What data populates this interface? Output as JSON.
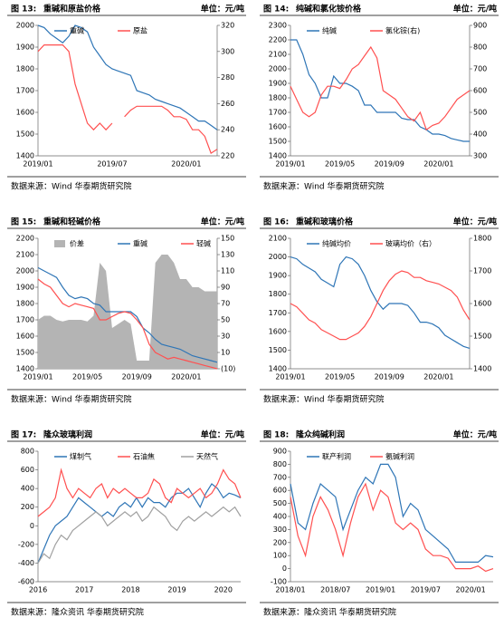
{
  "chart_data": [
    {
      "type": "line",
      "figure": "图 13:",
      "title": "重碱和原盐价格",
      "unit": "单位：元/吨",
      "source": "数据来源：Wind 华泰期货研究院",
      "categories": [
        "2019/01",
        null,
        null,
        null,
        null,
        null,
        null,
        null,
        null,
        null,
        null,
        null,
        "2019/07",
        null,
        null,
        null,
        null,
        null,
        null,
        null,
        null,
        null,
        null,
        null,
        "2020/01",
        null,
        null,
        null,
        null,
        null
      ],
      "ylim": [
        1400,
        2000
      ],
      "yticks": [
        1400,
        1500,
        1600,
        1700,
        1800,
        1900,
        2000
      ],
      "y2lim": [
        220,
        320
      ],
      "y2ticks": [
        220,
        240,
        260,
        280,
        300,
        320
      ],
      "series": [
        {
          "name": "重碱",
          "color": "#2e75b6",
          "values": [
            2000,
            1990,
            1960,
            1940,
            1920,
            1950,
            2000,
            1990,
            1970,
            1900,
            1860,
            1820,
            1800,
            1790,
            1780,
            1770,
            1700,
            1690,
            1680,
            1660,
            1650,
            1640,
            1630,
            1620,
            1600,
            1580,
            1560,
            1560,
            1540,
            1520
          ]
        },
        {
          "name": "原盐",
          "color": "#ff5050",
          "axis": "y2",
          "values": [
            300,
            305,
            305,
            305,
            305,
            300,
            275,
            260,
            245,
            240,
            245,
            240,
            245,
            null,
            250,
            255,
            258,
            258,
            258,
            258,
            258,
            255,
            250,
            250,
            248,
            240,
            240,
            235,
            222,
            225
          ]
        }
      ]
    },
    {
      "type": "line",
      "figure": "图 14:",
      "title": "纯碱和氯化铵价格",
      "unit": "单位：元/吨",
      "source": "数据来源：Wind 华泰期货研究院",
      "categories": [
        "2019/01",
        null,
        null,
        null,
        null,
        null,
        null,
        null,
        "2019/05",
        null,
        null,
        null,
        null,
        null,
        null,
        null,
        "2019/09",
        null,
        null,
        null,
        null,
        null,
        null,
        null,
        "2020/01",
        null,
        null,
        null,
        null,
        null
      ],
      "ylim": [
        1400,
        2300
      ],
      "yticks": [
        1400,
        1500,
        1600,
        1700,
        1800,
        1900,
        2000,
        2100,
        2200,
        2300
      ],
      "y2lim": [
        300,
        900
      ],
      "y2ticks": [
        300,
        400,
        500,
        600,
        700,
        800,
        900
      ],
      "series": [
        {
          "name": "纯碱",
          "color": "#2e75b6",
          "values": [
            2200,
            2200,
            2100,
            1960,
            1900,
            1800,
            1800,
            1950,
            1900,
            1900,
            1880,
            1850,
            1750,
            1750,
            1700,
            1700,
            1700,
            1700,
            1660,
            1650,
            1650,
            1600,
            1580,
            1550,
            1550,
            1540,
            1520,
            1510,
            1500,
            1500
          ]
        },
        {
          "name": "氯化铵(右)",
          "color": "#ff5050",
          "axis": "y2",
          "values": [
            620,
            560,
            500,
            480,
            500,
            580,
            620,
            620,
            610,
            650,
            700,
            720,
            760,
            800,
            750,
            600,
            580,
            560,
            520,
            480,
            460,
            500,
            420,
            440,
            450,
            480,
            520,
            560,
            580,
            600
          ]
        }
      ]
    },
    {
      "type": "line",
      "figure": "图 15:",
      "title": "重碱和轻碱价格",
      "unit": "单位：元/吨",
      "source": "数据来源：Wind 华泰期货研究院",
      "categories": [
        "2019/01",
        null,
        null,
        null,
        null,
        null,
        null,
        null,
        "2019/05",
        null,
        null,
        null,
        null,
        null,
        null,
        null,
        "2019/09",
        null,
        null,
        null,
        null,
        null,
        null,
        null,
        "2020/01",
        null,
        null,
        null,
        null,
        null
      ],
      "ylim": [
        1400,
        2200
      ],
      "yticks": [
        1400,
        1500,
        1600,
        1700,
        1800,
        1900,
        2000,
        2100,
        2200
      ],
      "y2lim": [
        -10,
        150
      ],
      "y2ticks": [
        {
          "value": -10,
          "label": "(10)"
        },
        10,
        30,
        50,
        70,
        90,
        110,
        130,
        150
      ],
      "series": [
        {
          "name": "价差",
          "color": "#b4b4b4",
          "axis": "y2",
          "type": "area",
          "values": [
            50,
            55,
            55,
            50,
            48,
            50,
            50,
            50,
            48,
            55,
            120,
            110,
            40,
            45,
            50,
            45,
            0,
            0,
            0,
            120,
            130,
            130,
            120,
            100,
            100,
            90,
            90,
            85,
            85,
            85
          ]
        },
        {
          "name": "重碱",
          "color": "#2e75b6",
          "values": [
            2020,
            2000,
            1980,
            1960,
            1900,
            1850,
            1830,
            1840,
            1830,
            1800,
            1790,
            1750,
            1750,
            1750,
            1750,
            1750,
            1720,
            1650,
            1620,
            1580,
            1550,
            1540,
            1530,
            1520,
            1500,
            1480,
            1470,
            1460,
            1450,
            1440
          ]
        },
        {
          "name": "轻碱",
          "color": "#ff5050",
          "values": [
            1950,
            1920,
            1900,
            1850,
            1800,
            1780,
            1800,
            1790,
            1780,
            1770,
            1700,
            1700,
            1720,
            1740,
            1750,
            1740,
            1700,
            1650,
            1550,
            1500,
            1480,
            1460,
            1470,
            1460,
            1450,
            1440,
            1430,
            1420,
            1410,
            1400
          ]
        }
      ]
    },
    {
      "type": "line",
      "figure": "图 16:",
      "title": "重碱和玻璃价格",
      "unit": "单位：元/吨",
      "source": "数据来源：Wind 华泰期货研究院",
      "categories": [
        "2019/01",
        null,
        null,
        null,
        null,
        null,
        null,
        null,
        "2019/05",
        null,
        null,
        null,
        null,
        null,
        null,
        null,
        "2019/09",
        null,
        null,
        null,
        null,
        null,
        null,
        null,
        "2020/01",
        null,
        null,
        null,
        null,
        null
      ],
      "ylim": [
        1400,
        2100
      ],
      "yticks": [
        1400,
        1500,
        1600,
        1700,
        1800,
        1900,
        2000,
        2100
      ],
      "y2lim": [
        1400,
        1800
      ],
      "y2ticks": [
        1400,
        1500,
        1600,
        1700,
        1800
      ],
      "series": [
        {
          "name": "纯碱均价",
          "color": "#2e75b6",
          "values": [
            2000,
            1990,
            1960,
            1940,
            1920,
            1880,
            1860,
            1840,
            1960,
            2000,
            1990,
            1960,
            1900,
            1820,
            1760,
            1720,
            1750,
            1750,
            1750,
            1740,
            1700,
            1650,
            1650,
            1640,
            1620,
            1580,
            1560,
            1540,
            1520,
            1510
          ]
        },
        {
          "name": "玻璃均价（右）",
          "color": "#ff5050",
          "axis": "y2",
          "values": [
            1600,
            1590,
            1570,
            1550,
            1540,
            1520,
            1510,
            1500,
            1490,
            1490,
            1500,
            1510,
            1530,
            1560,
            1600,
            1640,
            1670,
            1690,
            1700,
            1695,
            1680,
            1680,
            1670,
            1665,
            1660,
            1650,
            1640,
            1620,
            1580,
            1550
          ]
        }
      ]
    },
    {
      "type": "line",
      "figure": "图 17:",
      "title": "隆众玻璃利润",
      "unit": "单位：元/吨",
      "source": "数据来源：隆众资讯 华泰期货研究院",
      "categories": [
        "2016",
        null,
        null,
        null,
        null,
        null,
        null,
        null,
        "2017",
        null,
        null,
        null,
        null,
        null,
        null,
        null,
        "2018",
        null,
        null,
        null,
        null,
        null,
        null,
        null,
        "2019",
        null,
        null,
        null,
        null,
        null,
        null,
        null,
        "2020",
        null,
        null,
        null
      ],
      "ylim": [
        -600,
        800
      ],
      "yticks": [
        -600,
        -400,
        -200,
        0,
        200,
        400,
        600,
        800
      ],
      "series": [
        {
          "name": "煤制气",
          "color": "#2e75b6",
          "values": [
            -400,
            -250,
            -100,
            0,
            50,
            100,
            200,
            300,
            250,
            200,
            150,
            100,
            150,
            100,
            200,
            250,
            200,
            300,
            200,
            300,
            250,
            250,
            200,
            300,
            350,
            350,
            400,
            300,
            200,
            350,
            450,
            400,
            300,
            350,
            330,
            300
          ]
        },
        {
          "name": "石油焦",
          "color": "#ff5050",
          "values": [
            100,
            150,
            200,
            300,
            600,
            400,
            300,
            400,
            350,
            300,
            400,
            450,
            300,
            400,
            350,
            400,
            350,
            300,
            300,
            350,
            500,
            450,
            300,
            250,
            400,
            350,
            300,
            350,
            400,
            300,
            350,
            450,
            600,
            500,
            450,
            300
          ]
        },
        {
          "name": "天然气",
          "color": "#a0a0a0",
          "values": [
            -400,
            -300,
            -350,
            -200,
            -100,
            -150,
            -50,
            0,
            50,
            100,
            150,
            100,
            0,
            50,
            100,
            150,
            100,
            150,
            50,
            100,
            200,
            150,
            100,
            0,
            -50,
            50,
            100,
            50,
            100,
            150,
            100,
            150,
            200,
            150,
            200,
            100
          ]
        }
      ]
    },
    {
      "type": "line",
      "figure": "图 18:",
      "title": "隆众纯碱利润",
      "unit": "单位：元/吨",
      "source": "数据来源：隆众资讯 华泰期货研究院",
      "categories": [
        "2018/01",
        null,
        null,
        null,
        null,
        null,
        "2018/07",
        null,
        null,
        null,
        null,
        null,
        "2019/01",
        null,
        null,
        null,
        null,
        null,
        "2019/07",
        null,
        null,
        null,
        null,
        null,
        "2020/01",
        null,
        null,
        null
      ],
      "ylim": [
        -100,
        900
      ],
      "yticks": [
        -100,
        0,
        100,
        200,
        300,
        400,
        500,
        600,
        700,
        800,
        900
      ],
      "series": [
        {
          "name": "联产利润",
          "color": "#2e75b6",
          "values": [
            650,
            350,
            300,
            500,
            650,
            600,
            550,
            300,
            450,
            600,
            700,
            650,
            800,
            800,
            700,
            400,
            500,
            450,
            300,
            250,
            200,
            150,
            50,
            50,
            50,
            50,
            100,
            90
          ]
        },
        {
          "name": "氨碱利润",
          "color": "#ff5050",
          "values": [
            550,
            250,
            100,
            400,
            550,
            450,
            300,
            100,
            350,
            550,
            650,
            450,
            600,
            550,
            350,
            300,
            350,
            300,
            150,
            100,
            100,
            80,
            0,
            0,
            0,
            20,
            -20,
            0
          ]
        }
      ]
    }
  ]
}
